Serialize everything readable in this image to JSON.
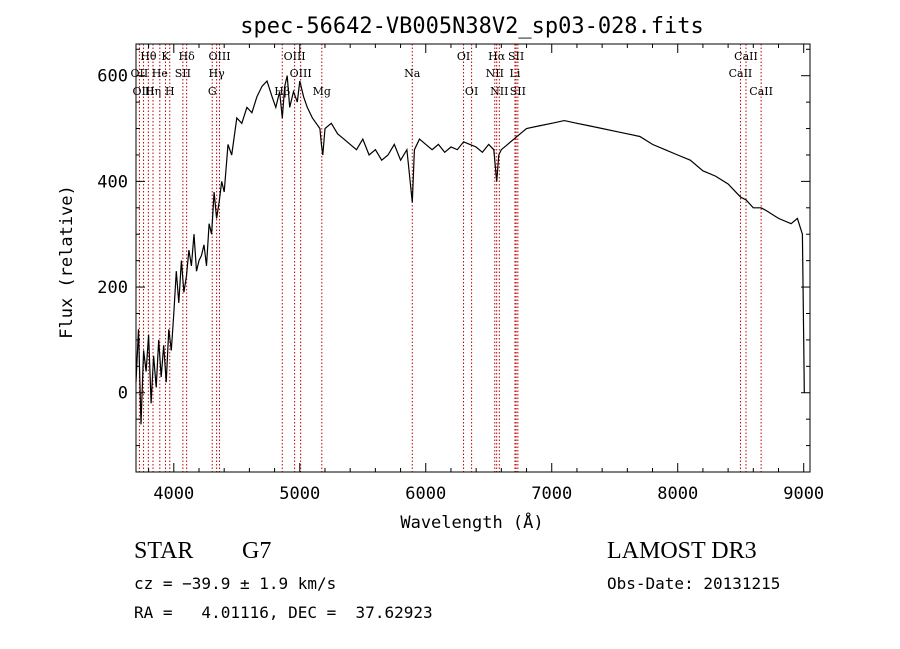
{
  "chart_data": {
    "type": "line",
    "title": "spec-56642-VB005N38V2_sp03-028.fits",
    "xlabel": "Wavelength (Å)",
    "ylabel": "Flux (relative)",
    "xlim": [
      3700,
      9050
    ],
    "ylim": [
      -150,
      660
    ],
    "xticks": [
      4000,
      5000,
      6000,
      7000,
      8000,
      9000
    ],
    "yticks": [
      0,
      200,
      400,
      600
    ],
    "series": [
      {
        "name": "spectrum",
        "color": "#000000",
        "x": [
          3700,
          3720,
          3740,
          3760,
          3780,
          3800,
          3820,
          3840,
          3860,
          3880,
          3900,
          3920,
          3940,
          3960,
          3980,
          4000,
          4020,
          4040,
          4060,
          4080,
          4100,
          4120,
          4140,
          4160,
          4180,
          4200,
          4220,
          4240,
          4260,
          4280,
          4300,
          4320,
          4340,
          4360,
          4380,
          4400,
          4430,
          4460,
          4500,
          4540,
          4580,
          4620,
          4660,
          4700,
          4740,
          4780,
          4810,
          4840,
          4861,
          4880,
          4900,
          4920,
          4950,
          4980,
          5000,
          5030,
          5060,
          5100,
          5130,
          5160,
          5172,
          5183,
          5200,
          5250,
          5300,
          5350,
          5400,
          5450,
          5500,
          5550,
          5600,
          5650,
          5700,
          5750,
          5800,
          5850,
          5893,
          5910,
          5950,
          6000,
          6050,
          6100,
          6150,
          6200,
          6250,
          6300,
          6350,
          6400,
          6450,
          6500,
          6540,
          6563,
          6580,
          6600,
          6650,
          6700,
          6750,
          6800,
          6900,
          7000,
          7100,
          7200,
          7300,
          7400,
          7500,
          7600,
          7700,
          7800,
          7900,
          8000,
          8100,
          8200,
          8300,
          8400,
          8500,
          8542,
          8600,
          8662,
          8700,
          8800,
          8900,
          8950,
          8990,
          9000,
          9005
        ],
        "y": [
          20,
          120,
          -60,
          80,
          40,
          110,
          -20,
          70,
          10,
          100,
          30,
          90,
          20,
          120,
          80,
          150,
          230,
          170,
          250,
          190,
          220,
          270,
          240,
          300,
          230,
          250,
          260,
          280,
          240,
          320,
          300,
          380,
          330,
          360,
          400,
          380,
          470,
          450,
          520,
          510,
          540,
          530,
          560,
          580,
          590,
          560,
          540,
          570,
          520,
          580,
          600,
          540,
          570,
          550,
          590,
          560,
          540,
          520,
          510,
          500,
          470,
          450,
          500,
          510,
          490,
          480,
          470,
          460,
          480,
          450,
          460,
          440,
          450,
          470,
          440,
          460,
          360,
          460,
          480,
          470,
          460,
          470,
          455,
          465,
          460,
          475,
          470,
          465,
          455,
          470,
          460,
          400,
          450,
          460,
          470,
          480,
          490,
          500,
          505,
          510,
          515,
          510,
          505,
          500,
          495,
          490,
          485,
          470,
          460,
          450,
          440,
          420,
          410,
          395,
          370,
          365,
          350,
          350,
          345,
          330,
          320,
          330,
          300,
          100,
          0
        ]
      }
    ],
    "lines": [
      {
        "label": "Hθ",
        "x": 3798,
        "row": 0
      },
      {
        "label": "OII",
        "x": 3727,
        "row": 1
      },
      {
        "label": "OIII",
        "x": 3760,
        "row": 2
      },
      {
        "label": "Hη",
        "x": 3835,
        "row": 2
      },
      {
        "label": "He",
        "x": 3889,
        "row": 1
      },
      {
        "label": "K",
        "x": 3934,
        "row": 0
      },
      {
        "label": "H",
        "x": 3968,
        "row": 2
      },
      {
        "label": "SII",
        "x": 4072,
        "row": 1
      },
      {
        "label": "Hδ",
        "x": 4102,
        "row": 0
      },
      {
        "label": "OIII",
        "x": 4363,
        "row": 0
      },
      {
        "label": "Hγ",
        "x": 4340,
        "row": 1
      },
      {
        "label": "G",
        "x": 4305,
        "row": 2
      },
      {
        "label": "Hβ",
        "x": 4861,
        "row": 2
      },
      {
        "label": "OIII",
        "x": 4959,
        "row": 0
      },
      {
        "label": "OIII",
        "x": 5007,
        "row": 1
      },
      {
        "label": "Mg",
        "x": 5175,
        "row": 2
      },
      {
        "label": "Na",
        "x": 5893,
        "row": 1
      },
      {
        "label": "OI",
        "x": 6300,
        "row": 0
      },
      {
        "label": "OI",
        "x": 6364,
        "row": 2
      },
      {
        "label": "Hα",
        "x": 6563,
        "row": 0
      },
      {
        "label": "NII",
        "x": 6548,
        "row": 1
      },
      {
        "label": "NII",
        "x": 6584,
        "row": 2
      },
      {
        "label": "SII",
        "x": 6717,
        "row": 0
      },
      {
        "label": "Li",
        "x": 6708,
        "row": 1
      },
      {
        "label": "SII",
        "x": 6731,
        "row": 2
      },
      {
        "label": "CaII",
        "x": 8542,
        "row": 0
      },
      {
        "label": "CaII",
        "x": 8498,
        "row": 1
      },
      {
        "label": "CaII",
        "x": 8662,
        "row": 2
      }
    ]
  },
  "info": {
    "type_label": "STAR",
    "subclass": "G7",
    "survey": "LAMOST DR3",
    "cz": "cz = −39.9 ± 1.9 km/s",
    "obs_date": "Obs-Date: 20131215",
    "coords": "RA =   4.01116, DEC =  37.62923"
  }
}
